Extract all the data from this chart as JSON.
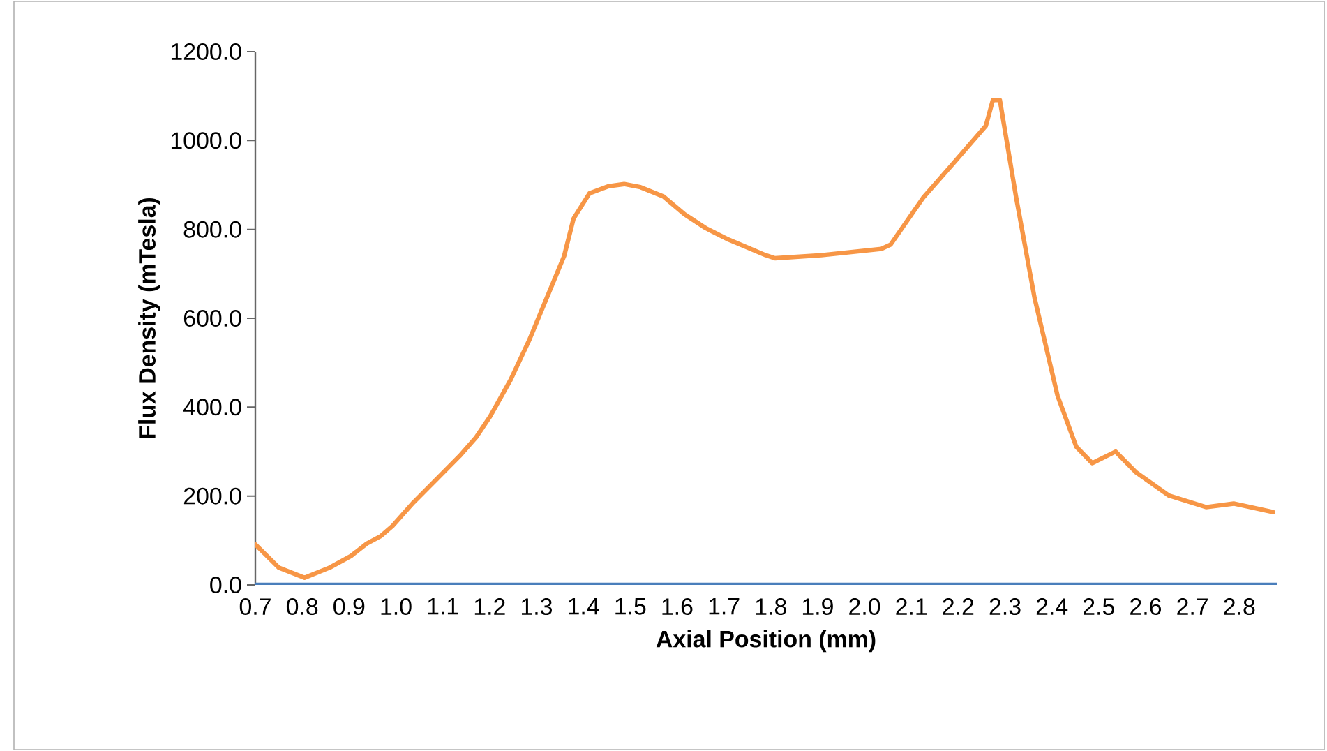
{
  "chart_data": {
    "type": "line",
    "xlabel": "Axial Position (mm)",
    "ylabel": "Flux Density (mTesla)",
    "xlim": [
      0.7,
      2.88
    ],
    "xticks": [
      0.7,
      0.8,
      0.9,
      {
        "value": 1.0,
        "label": "1.0"
      },
      1.1,
      1.2,
      1.3,
      1.4,
      1.5,
      1.6,
      1.7,
      1.8,
      1.9,
      {
        "value": 2.0,
        "label": "2.0"
      },
      2.1,
      2.2,
      2.3,
      2.4,
      2.5,
      2.6,
      2.7,
      2.8
    ],
    "ylim": [
      0,
      1200
    ],
    "yticks": [
      {
        "value": 0,
        "label": "0.0"
      },
      {
        "value": 200,
        "label": "200.0"
      },
      {
        "value": 400,
        "label": "400.0"
      },
      {
        "value": 600,
        "label": "600.0"
      },
      {
        "value": 800,
        "label": "800.0"
      },
      {
        "value": 1000,
        "label": "1000.0"
      },
      {
        "value": 1200,
        "label": "1200.0"
      }
    ],
    "marker": "none",
    "line_style": "solid",
    "series": [
      {
        "color": "#4a7ebb",
        "x": [
          0.7,
          2.88
        ],
        "values": [
          0,
          0
        ]
      },
      {
        "color": "#f79646",
        "x": [
          0.7,
          0.75,
          0.805,
          0.859,
          0.904,
          0.938,
          0.968,
          0.993,
          1.037,
          1.087,
          1.136,
          1.171,
          1.201,
          1.245,
          1.285,
          1.324,
          1.359,
          1.379,
          1.413,
          1.453,
          1.487,
          1.522,
          1.571,
          1.616,
          1.661,
          1.71,
          1.789,
          1.809,
          1.908,
          2.036,
          2.056,
          2.125,
          2.195,
          2.259,
          2.274,
          2.289,
          2.323,
          2.363,
          2.412,
          2.452,
          2.486,
          2.536,
          2.58,
          2.65,
          2.729,
          2.788,
          2.872
        ],
        "values": [
          91,
          39,
          16,
          39,
          65,
          93,
          110,
          133,
          185,
          238,
          290,
          332,
          379,
          462,
          552,
          651,
          740,
          824,
          881,
          897,
          902,
          895,
          874,
          834,
          803,
          777,
          742,
          735,
          742,
          756,
          766,
          871,
          955,
          1033,
          1091,
          1091,
          876,
          646,
          426,
          311,
          274,
          300,
          253,
          201,
          175,
          183,
          164
        ]
      }
    ]
  }
}
